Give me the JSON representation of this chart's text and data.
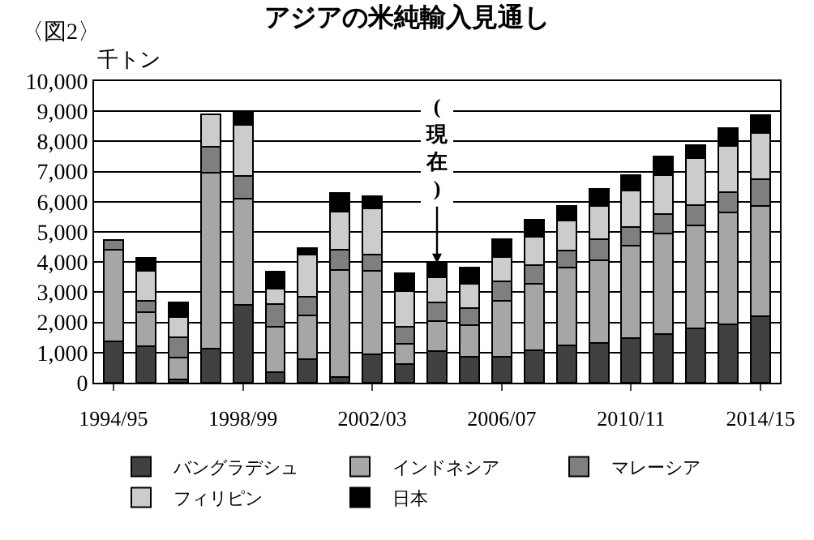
{
  "chart_data": {
    "type": "bar",
    "stacked": true,
    "title": "アジアの米純輸入見通し",
    "ylabel": "千トン",
    "annotations": [
      "〈図2〉",
      {
        "text": "(現在)",
        "y": 3960
      }
    ],
    "categories": [
      "1994/95",
      null,
      null,
      null,
      "1998/99",
      null,
      null,
      null,
      "2002/03",
      null,
      null,
      null,
      "2006/07",
      null,
      null,
      null,
      "2010/11",
      null,
      null,
      null,
      "2014/15"
    ],
    "series": [
      {
        "name": "バングラデシュ",
        "color": "#404040",
        "values": [
          1360,
          1200,
          120,
          1140,
          2570,
          350,
          780,
          200,
          940,
          620,
          1060,
          850,
          850,
          1070,
          1230,
          1320,
          1470,
          1610,
          1790,
          1940,
          2200
        ]
      },
      {
        "name": "インドネシア",
        "color": "#a6a6a6",
        "values": [
          3040,
          1150,
          720,
          5810,
          3540,
          1510,
          1450,
          3540,
          2780,
          680,
          990,
          1060,
          1860,
          2210,
          2580,
          2740,
          3080,
          3330,
          3420,
          3710,
          3670
        ]
      },
      {
        "name": "マレーシア",
        "color": "#7f7f7f",
        "values": [
          320,
          360,
          660,
          880,
          740,
          750,
          630,
          660,
          530,
          550,
          620,
          570,
          660,
          620,
          560,
          710,
          610,
          660,
          680,
          680,
          870
        ]
      },
      {
        "name": "フィリピン",
        "color": "#cccccc",
        "values": [
          0,
          1010,
          670,
          1070,
          1710,
          510,
          1380,
          1260,
          1540,
          1190,
          820,
          790,
          790,
          940,
          1000,
          1100,
          1220,
          1290,
          1560,
          1510,
          1540
        ]
      },
      {
        "name": "日本",
        "color": "#000000",
        "values": [
          0,
          410,
          500,
          0,
          380,
          550,
          230,
          640,
          400,
          600,
          470,
          540,
          610,
          560,
          500,
          550,
          510,
          620,
          440,
          590,
          590
        ]
      }
    ],
    "ylim": [
      0,
      10000
    ],
    "yticks": [
      0,
      {
        "value": 1000,
        "label": "1,000"
      },
      {
        "value": 2000,
        "label": "2,000"
      },
      {
        "value": 3000,
        "label": "3,000"
      },
      {
        "value": 4000,
        "label": "4,000"
      },
      {
        "value": 5000,
        "label": "5,000"
      },
      {
        "value": 6000,
        "label": "6,000"
      },
      {
        "value": 7000,
        "label": "7,000"
      },
      {
        "value": 8000,
        "label": "8,000"
      },
      {
        "value": 9000,
        "label": "9,000"
      },
      {
        "value": 10000,
        "label": "10,000"
      }
    ],
    "grid": "y",
    "legend": "bottom"
  }
}
